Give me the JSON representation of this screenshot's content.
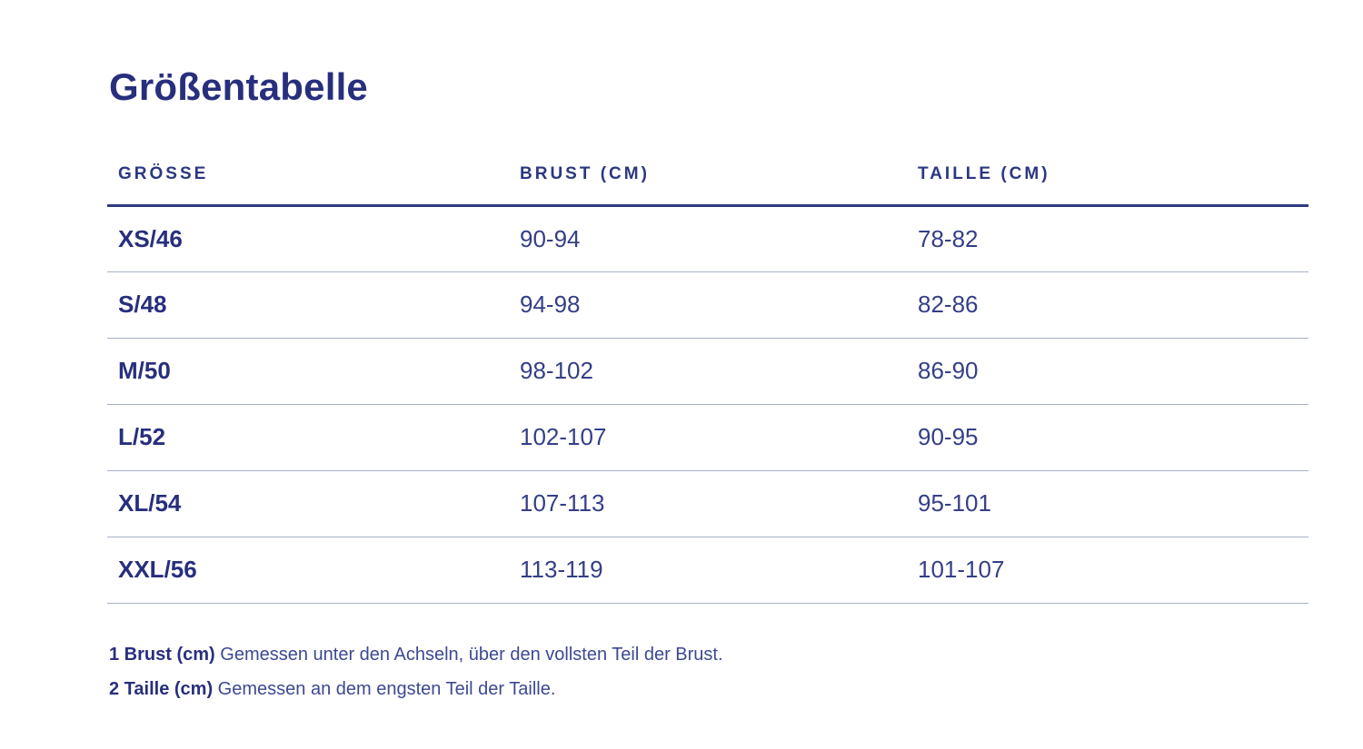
{
  "page": {
    "title": "Größentabelle"
  },
  "size_table": {
    "columns": [
      {
        "label": "GRÖSSE"
      },
      {
        "label": "BRUST (CM)"
      },
      {
        "label": "TAILLE (CM)"
      }
    ],
    "rows": [
      {
        "size": "XS/46",
        "brust_cm": "90-94",
        "taille_cm": "78-82"
      },
      {
        "size": "S/48",
        "brust_cm": "94-98",
        "taille_cm": "82-86"
      },
      {
        "size": "M/50",
        "brust_cm": "98-102",
        "taille_cm": "86-90"
      },
      {
        "size": "L/52",
        "brust_cm": "102-107",
        "taille_cm": "90-95"
      },
      {
        "size": "XL/54",
        "brust_cm": "107-113",
        "taille_cm": "95-101"
      },
      {
        "size": "XXL/56",
        "brust_cm": "113-119",
        "taille_cm": "101-107"
      }
    ]
  },
  "footnotes": [
    {
      "label": "1 Brust (cm)",
      "text": " Gemessen unter den Achseln, über den vollsten Teil der Brust."
    },
    {
      "label": "2 Taille (cm)",
      "text": " Gemessen an dem engsten Teil der Taille."
    }
  ],
  "colors": {
    "heading": "#272f7d",
    "value_text": "#343f87",
    "footnote_text": "#3c4991",
    "header_border": "#2d3a80",
    "row_border": "#a8b0c6",
    "background": "#ffffff"
  }
}
